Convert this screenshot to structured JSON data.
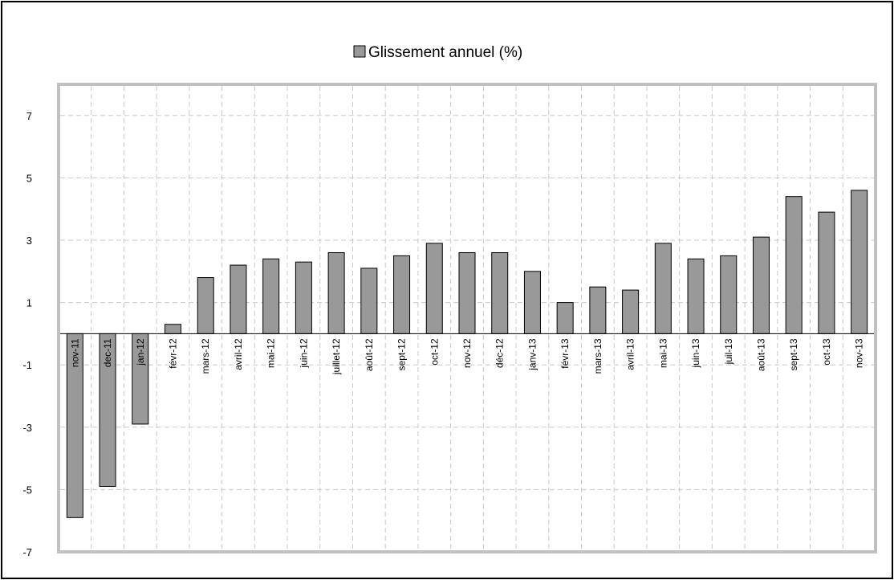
{
  "chart_data": {
    "type": "bar",
    "legend": {
      "label": "Glissement annuel (%)",
      "position": "top-center"
    },
    "categories": [
      "nov-11",
      "dec-11",
      "jan-12",
      "févr-12",
      "mars-12",
      "avril-12",
      "mai-12",
      "juin-12",
      "juillet-12",
      "août-12",
      "sept-12",
      "oct-12",
      "nov-12",
      "déc-12",
      "janv-13",
      "févr-13",
      "mars-13",
      "avril-13",
      "mai-13",
      "juin-13",
      "juil-13",
      "août-13",
      "sept-13",
      "oct-13",
      "nov-13"
    ],
    "series": [
      {
        "name": "Glissement annuel (%)",
        "values": [
          -5.9,
          -4.9,
          -2.9,
          0.3,
          1.8,
          2.2,
          2.4,
          2.3,
          2.6,
          2.1,
          2.5,
          2.9,
          2.6,
          2.6,
          2.0,
          1.0,
          1.5,
          1.4,
          2.9,
          2.4,
          2.5,
          3.1,
          4.4,
          3.9,
          4.6
        ]
      }
    ],
    "y_ticks": [
      "-7",
      "-5",
      "-3",
      "-1",
      "1",
      "3",
      "5",
      "7"
    ],
    "ylim": [
      -7,
      8
    ],
    "grid": true,
    "colors": {
      "bar_fill": "#999999",
      "bar_stroke": "#000000",
      "plot_border": "#c0c0c0",
      "grid": "#c8c8c8",
      "zero_line": "#000000"
    }
  }
}
